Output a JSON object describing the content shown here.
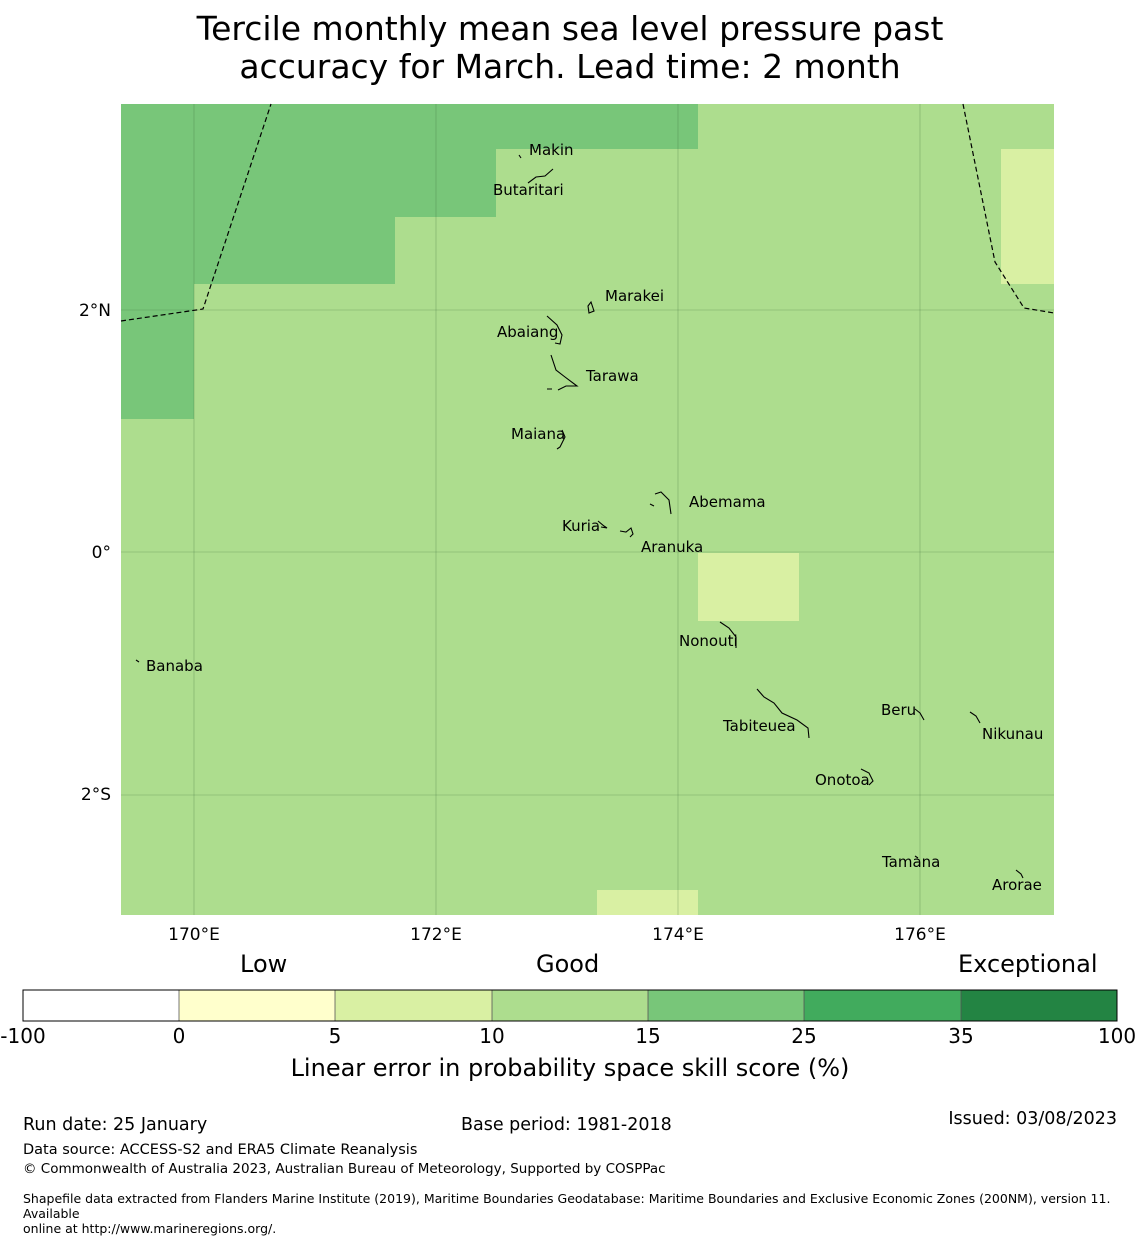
{
  "title_line1": "Tercile monthly mean sea level pressure past",
  "title_line2": "accuracy for March. Lead time: 2 month",
  "map": {
    "lat_labels": [
      "2°N",
      "0°",
      "2°S"
    ],
    "lon_labels": [
      "170°E",
      "172°E",
      "174°E",
      "176°E"
    ],
    "islands": [
      "Makin",
      "Butaritari",
      "Marakei",
      "Abaiang",
      "Tarawa",
      "Maiana",
      "Abemama",
      "Kuria",
      "Aranuka",
      "Nonouti",
      "Banaba",
      "Tabiteuea",
      "Beru",
      "Nikunau",
      "Onotoa",
      "Tamana",
      "Arorae"
    ]
  },
  "legend": {
    "categories": [
      "Low",
      "Good",
      "Exceptional"
    ],
    "ticks": [
      "-100",
      "0",
      "5",
      "10",
      "15",
      "25",
      "35",
      "100"
    ],
    "colors": [
      "#ffffff",
      "#ffffcc",
      "#d9f0a3",
      "#addd8e",
      "#78c679",
      "#41ab5d",
      "#238443"
    ],
    "label": "Linear error in probability space skill score (%)"
  },
  "footer": {
    "run_date": "Run date: 25 January",
    "base_period": "Base period: 1981-2018",
    "issued": "Issued: 03/08/2023",
    "data_source": "Data source: ACCESS-S2 and ERA5 Climate Reanalysis",
    "copyright": "© Commonwealth of Australia 2023, Australian Bureau of Meteorology, Supported by COSPPac",
    "shapefile_line1": "Shapefile data extracted from Flanders Marine Institute (2019), Maritime Boundaries Geodatabase: Maritime Boundaries and Exclusive Economic Zones (200NM), version 11. Available",
    "shapefile_line2": "online at http://www.marineregions.org/."
  }
}
